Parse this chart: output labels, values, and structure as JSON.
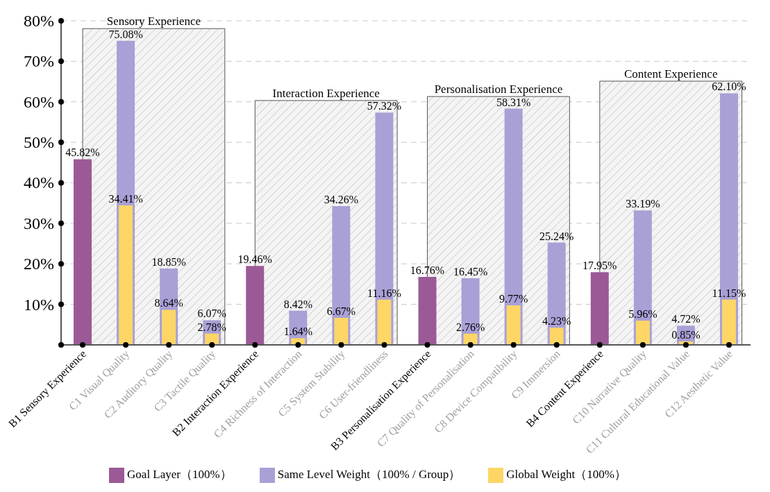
{
  "chart_data": {
    "type": "bar",
    "categories": [
      "B1 Sensory Experience",
      "C1 Visual Quality",
      "C2 Auditory Quality",
      "C3 Tactile Quality",
      "B2 Interaction Experience",
      "C4 Richness of Interaction",
      "C5 System Stability",
      "C6 User-friendliness",
      "B3 Personalisation Experience",
      "C7 Quality of Personalisation",
      "C8 Device Compatibility",
      "C9 Immersion",
      "B4 Content Experience",
      "C10 Narrative Quality",
      "C11 Cultural Educational Value",
      "C12 Aesthetic Value"
    ],
    "series": [
      {
        "name": "Goal Layer（100%）",
        "color": "#9b5a96",
        "values": [
          45.82,
          null,
          null,
          null,
          19.46,
          null,
          null,
          null,
          16.76,
          null,
          null,
          null,
          17.95,
          null,
          null,
          null
        ],
        "value_labels": [
          "45.82%",
          null,
          null,
          null,
          "19.46%",
          null,
          null,
          null,
          "16.76%",
          null,
          null,
          null,
          "17.95%",
          null,
          null,
          null
        ]
      },
      {
        "name": "Same Level Weight（100% / Group）",
        "color": "#a9a0d6",
        "values": [
          null,
          75.08,
          18.85,
          6.07,
          null,
          8.42,
          34.26,
          57.32,
          null,
          16.45,
          58.31,
          25.24,
          null,
          33.19,
          4.72,
          62.1
        ],
        "value_labels": [
          null,
          "75.08%",
          "18.85%",
          "6.07%",
          null,
          "8.42%",
          "34.26%",
          "57.32%",
          null,
          "16.45%",
          "58.31%",
          "25.24%",
          null,
          "33.19%",
          "4.72%",
          "62.10%"
        ]
      },
      {
        "name": "Global Weight（100%）",
        "color": "#fdd666",
        "values": [
          null,
          34.41,
          8.64,
          2.78,
          null,
          1.64,
          6.67,
          11.16,
          null,
          2.76,
          9.77,
          4.23,
          null,
          5.96,
          0.85,
          11.15
        ],
        "value_labels": [
          null,
          "34.41%",
          "8.64%",
          "2.78%",
          null,
          "1.64%",
          "6.67%",
          "11.16%",
          null,
          "2.76%",
          "9.77%",
          "4.23%",
          null,
          "5.96%",
          "0.85%",
          "11.15%"
        ]
      }
    ],
    "ylim": [
      0,
      80
    ],
    "yticks": [
      {
        "value": 0,
        "label": null
      },
      {
        "value": 10,
        "label": "10%"
      },
      {
        "value": 20,
        "label": "20%"
      },
      {
        "value": 30,
        "label": "30%"
      },
      {
        "value": 40,
        "label": "40%"
      },
      {
        "value": 50,
        "label": "50%"
      },
      {
        "value": 60,
        "label": "60%"
      },
      {
        "value": 70,
        "label": "70%"
      },
      {
        "value": 80,
        "label": "80%"
      }
    ],
    "bands": [
      {
        "axis": "x",
        "from": "B1 Sensory Experience",
        "to": "C3 Tactile Quality",
        "label": "Sensory Experience"
      },
      {
        "axis": "x",
        "from": "B2 Interaction Experience",
        "to": "C6 User-friendliness",
        "label": "Interaction Experience"
      },
      {
        "axis": "x",
        "from": "B3 Personalisation Experience",
        "to": "C9 Immersion",
        "label": "Personalisation Experience"
      },
      {
        "axis": "x",
        "from": "B4 Content Experience",
        "to": "C12 Aesthetic Value",
        "label": "Content Experience"
      }
    ],
    "grid": "y",
    "legend": "bottom"
  }
}
